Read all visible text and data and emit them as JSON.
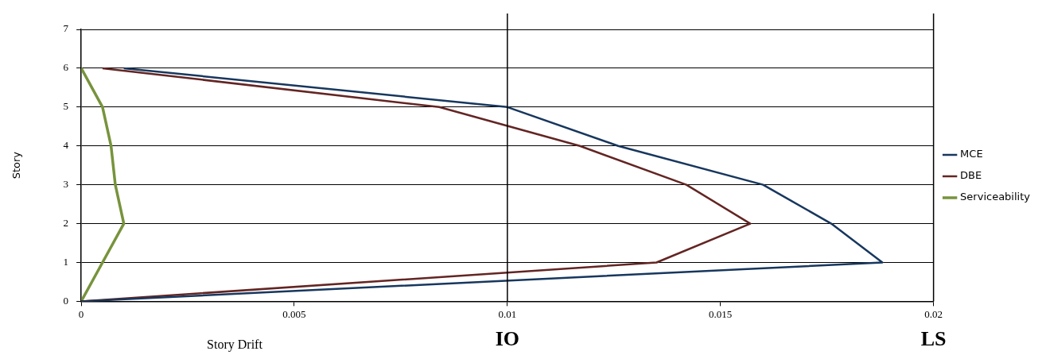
{
  "chart_data": {
    "type": "line",
    "xlabel": "Story Drift",
    "ylabel": "Story",
    "series": [
      {
        "name": "MCE",
        "color": "#17375e",
        "x": [
          0,
          0.0188,
          0.0176,
          0.016,
          0.0126,
          0.01,
          0.001
        ],
        "values": [
          0,
          1,
          2,
          3,
          4,
          5,
          6
        ]
      },
      {
        "name": "DBE",
        "color": "#632523",
        "x": [
          0,
          0.0135,
          0.0157,
          0.0142,
          0.0117,
          0.0084,
          0.0005
        ],
        "values": [
          0,
          1,
          2,
          3,
          4,
          5,
          6
        ]
      },
      {
        "name": "Serviceability",
        "color": "#77933c",
        "x": [
          0,
          0.0005,
          0.001,
          0.0008,
          0.0007,
          0.0005,
          0
        ],
        "values": [
          0,
          1,
          2,
          3,
          4,
          5,
          6
        ]
      }
    ],
    "xlim": [
      0,
      0.02
    ],
    "xticks": [
      0,
      0.005,
      0.01,
      0.015,
      0.02
    ],
    "ylim": [
      0,
      7
    ],
    "yticks": [
      0,
      1,
      2,
      3,
      4,
      5,
      6,
      7
    ],
    "grid": "y",
    "legend": "right",
    "marker": "none",
    "line_style": "solid",
    "ref_lines": [
      {
        "axis": "x",
        "value": 0.01,
        "label": "IO",
        "color": "#000000"
      },
      {
        "axis": "x",
        "value": 0.02,
        "label": "LS",
        "color": "#000000"
      }
    ]
  }
}
